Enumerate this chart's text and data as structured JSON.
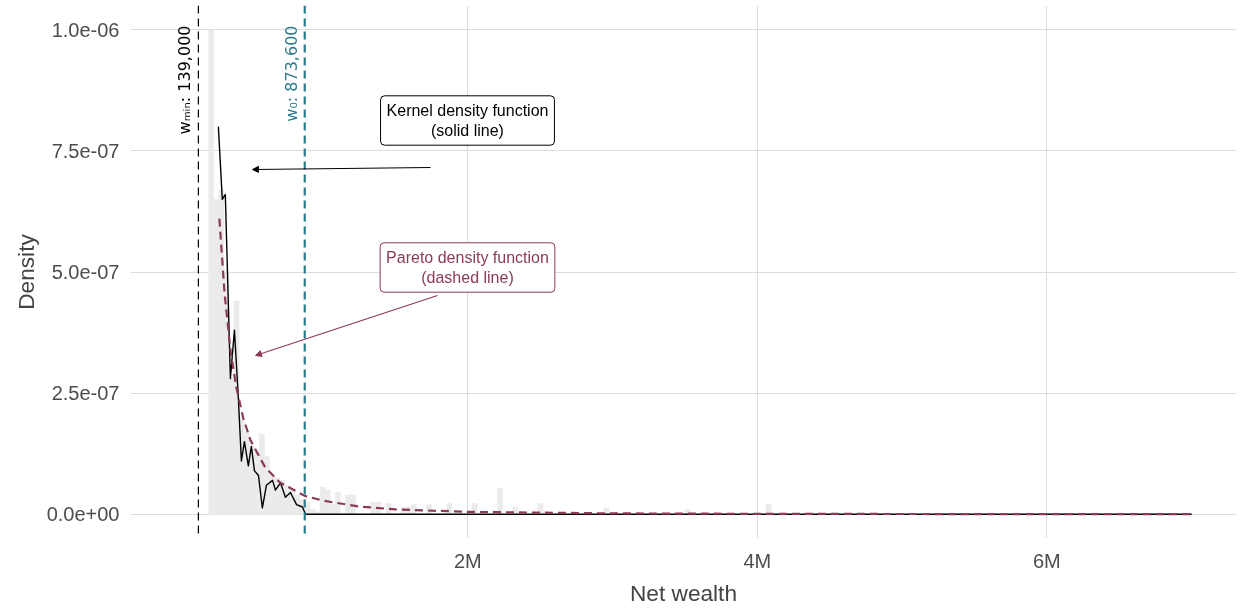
{
  "chart_data": {
    "type": "histogram",
    "xlabel": "Net wealth",
    "ylabel": "Density",
    "color": "#ebebeb",
    "bins": [
      210000,
      245000,
      280000,
      315000,
      350000,
      385000,
      420000,
      455000,
      490000,
      525000,
      560000,
      595000,
      630000,
      665000,
      700000,
      735000,
      770000,
      805000,
      840000,
      875000,
      910000,
      945000,
      980000,
      1015000,
      1050000,
      1085000,
      1120000,
      1155000,
      1190000,
      1225000,
      1260000,
      1295000,
      1330000,
      1365000,
      1400000,
      1435000,
      1470000,
      1505000,
      1540000,
      1575000,
      1610000,
      1645000,
      1680000,
      1715000,
      1750000,
      1785000,
      1820000,
      1855000,
      1890000,
      1925000,
      1960000,
      1995000,
      2030000,
      2065000,
      2100000,
      2135000,
      2170000,
      2205000,
      2240000,
      2275000,
      2310000,
      2345000,
      2380000,
      2415000,
      2450000,
      2485000,
      2520000,
      2555000,
      2590000,
      2625000,
      2660000,
      2695000,
      2730000,
      2765000,
      2800000,
      2835000,
      2870000,
      2905000,
      2940000,
      2975000,
      3010000,
      3045000,
      3080000,
      3115000,
      3150000,
      3185000,
      3220000,
      3255000,
      3290000,
      3325000,
      3360000,
      3395000,
      3430000,
      3465000,
      3500000,
      3535000,
      3570000,
      3605000,
      3640000,
      3675000,
      3710000,
      3745000,
      3780000,
      3815000,
      3850000,
      3885000,
      3920000,
      3955000,
      3990000,
      4025000,
      4060000,
      4095000
    ],
    "values": [
      1e-06,
      6.5e-07,
      6.7e-07,
      5e-07,
      2.8e-07,
      4.4e-07,
      2e-07,
      1.7e-07,
      1.4e-07,
      1.3e-07,
      1.65e-07,
      1.2e-07,
      8e-08,
      7.5e-08,
      7e-08,
      6e-08,
      5e-08,
      4e-08,
      3e-08,
      2.5e-08,
      1e-08,
      5e-09,
      5.6e-08,
      5e-08,
      2e-08,
      4.5e-08,
      0,
      4e-08,
      4e-08,
      0,
      0,
      0,
      2.5e-08,
      2.5e-08,
      0,
      2.2e-08,
      0,
      0,
      1.5e-08,
      1.5e-08,
      2e-08,
      0,
      0,
      2e-08,
      0,
      0,
      0,
      2.2e-08,
      0,
      0,
      0,
      0,
      2.2e-08,
      0,
      0,
      0,
      0,
      5.3e-08,
      0,
      0,
      1.4e-08,
      0,
      0,
      0,
      0,
      2.2e-08,
      0,
      0,
      0,
      0,
      0,
      0,
      0,
      0,
      0,
      0,
      0,
      0,
      1.3e-08,
      0,
      0,
      0,
      0,
      0,
      0,
      0,
      0,
      0,
      0,
      0,
      0,
      0,
      0,
      0,
      1e-08,
      0,
      0,
      0,
      0,
      0,
      0,
      0,
      0,
      0,
      0,
      0,
      0,
      0,
      0,
      0,
      2e-08
    ],
    "series": [
      {
        "type": "line",
        "color": "#000000",
        "line_style": "solid",
        "x": [
          277000,
          304000,
          325000,
          360000,
          388000,
          415000,
          436000,
          457000,
          484000,
          505000,
          526000,
          554000,
          581000,
          609000,
          651000,
          671000,
          706000,
          740000,
          775000,
          817000,
          858000,
          879000,
          7000000
        ],
        "values": [
          8e-07,
          6.5e-07,
          6.6e-07,
          2.8e-07,
          3.8e-07,
          2.4e-07,
          1.1e-07,
          1.5e-07,
          1e-07,
          1.4e-07,
          9e-08,
          8e-08,
          1.3e-08,
          6e-08,
          7e-08,
          5e-08,
          6.5e-08,
          3.5e-08,
          4.5e-08,
          2e-08,
          1.5e-08,
          0,
          0
        ]
      },
      {
        "type": "line",
        "color": "#8b3a5a",
        "line_style": "dashed",
        "x": [
          284000,
          320000,
          360000,
          400000,
          450000,
          500000,
          600000,
          700000,
          873600,
          1000000,
          1250000,
          1500000,
          2000000,
          3000000,
          4000000,
          5500000,
          7000000
        ],
        "values": [
          6.1e-07,
          4.55e-07,
          3.4e-07,
          2.63e-07,
          1.97e-07,
          1.52e-07,
          9.7e-08,
          6.6e-08,
          3.8e-08,
          2.8e-08,
          1.6e-08,
          1e-08,
          5e-09,
          1.8e-09,
          9e-10,
          4e-10,
          2e-10
        ]
      }
    ],
    "ref_lines": [
      {
        "axis": "x",
        "value": 139000,
        "label": "wₘᵢₙ: 139,000",
        "color": "#000000",
        "line_style": "dashed"
      },
      {
        "axis": "x",
        "value": 873600,
        "label": "w₀: 873,600",
        "color": "#2b7b8c",
        "line_style": "dashed"
      }
    ],
    "annotations": [
      "Kernel density function\n(solid line)",
      "Pareto density function\n(dashed line)"
    ],
    "xlim": [
      -330000,
      7310000
    ],
    "ylim": [
      -5e-08,
      1.05e-06
    ],
    "xticks": [
      {
        "value": 2000000,
        "label": "2M"
      },
      {
        "value": 4000000,
        "label": "4M"
      },
      {
        "value": 6000000,
        "label": "6M"
      }
    ],
    "yticks": [
      {
        "value": 0,
        "label": "0.0e+00"
      },
      {
        "value": 2.5e-07,
        "label": "2.5e-07"
      },
      {
        "value": 5e-07,
        "label": "5.0e-07"
      },
      {
        "value": 7.5e-07,
        "label": "7.5e-07"
      },
      {
        "value": 1e-06,
        "label": "1.0e-06"
      }
    ],
    "grid": true
  }
}
